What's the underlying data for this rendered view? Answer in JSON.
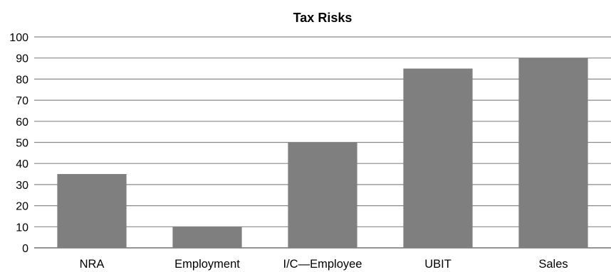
{
  "chart_data": {
    "type": "bar",
    "title": "Tax Risks",
    "xlabel": "",
    "ylabel": "",
    "categories": [
      "NRA",
      "Employment",
      "I/C—Employee",
      "UBIT",
      "Sales"
    ],
    "values": [
      35,
      10,
      50,
      85,
      90
    ],
    "ylim": [
      0,
      100
    ],
    "yticks": [
      0,
      10,
      20,
      30,
      40,
      50,
      60,
      70,
      80,
      90,
      100
    ],
    "grid": true,
    "legend": "none",
    "bar_color": "#7f7f7f"
  }
}
